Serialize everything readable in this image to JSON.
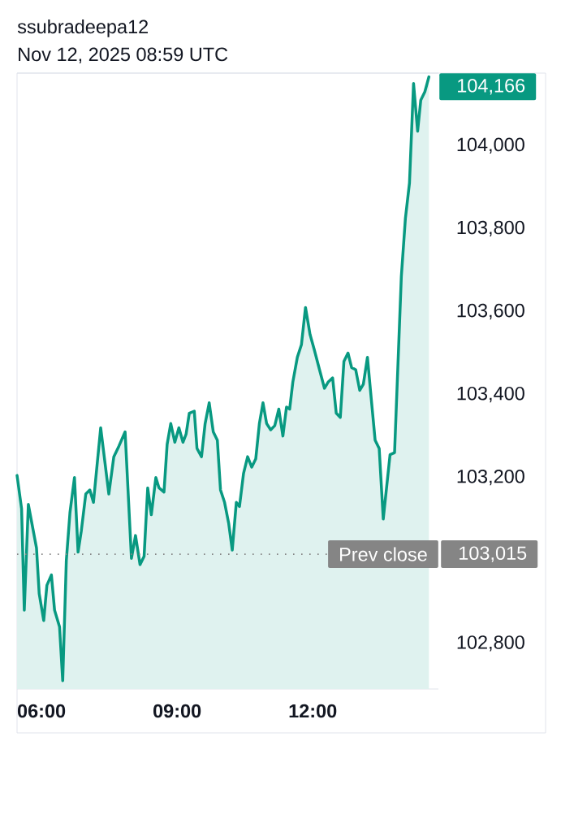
{
  "chart_data": {
    "type": "area",
    "title": "ssubradeepa12",
    "subtitle": "Nov 12, 2025 08:59 UTC",
    "color": "#089981",
    "marker": "none",
    "line_style": "solid",
    "x": [
      5.46,
      5.56,
      5.62,
      5.71,
      5.89,
      5.95,
      6.05,
      6.12,
      6.22,
      6.29,
      6.4,
      6.47,
      6.55,
      6.63,
      6.73,
      6.81,
      6.88,
      6.98,
      7.07,
      7.15,
      7.31,
      7.49,
      7.6,
      7.71,
      7.85,
      7.99,
      8.08,
      8.18,
      8.27,
      8.35,
      8.43,
      8.53,
      8.6,
      8.71,
      8.78,
      8.86,
      8.95,
      9.04,
      9.13,
      9.2,
      9.27,
      9.38,
      9.44,
      9.54,
      9.62,
      9.71,
      9.8,
      9.89,
      9.96,
      10.05,
      10.14,
      10.22,
      10.31,
      10.38,
      10.47,
      10.56,
      10.65,
      10.74,
      10.82,
      10.9,
      10.98,
      11.07,
      11.16,
      11.25,
      11.34,
      11.42,
      11.49,
      11.56,
      11.66,
      11.75,
      11.84,
      11.94,
      12.03,
      12.15,
      12.26,
      12.34,
      12.44,
      12.52,
      12.61,
      12.69,
      12.78,
      12.86,
      12.95,
      13.04,
      13.12,
      13.21,
      13.29,
      13.38,
      13.47,
      13.56,
      13.71,
      13.81,
      13.96,
      14.05,
      14.14,
      14.23,
      14.32,
      14.39,
      14.48,
      14.57
    ],
    "values": [
      103205,
      103125,
      102880,
      103135,
      103030,
      102920,
      102855,
      102940,
      102965,
      102880,
      102840,
      102710,
      103000,
      103115,
      103200,
      103020,
      103070,
      103160,
      103170,
      103140,
      103320,
      103160,
      103250,
      103275,
      103310,
      103005,
      103060,
      102990,
      103010,
      103175,
      103110,
      103200,
      103175,
      103165,
      103280,
      103330,
      103285,
      103320,
      103285,
      103305,
      103355,
      103360,
      103270,
      103250,
      103330,
      103380,
      103310,
      103290,
      103170,
      103140,
      103090,
      103025,
      103140,
      103130,
      103210,
      103250,
      103225,
      103245,
      103330,
      103380,
      103330,
      103315,
      103325,
      103365,
      103300,
      103370,
      103365,
      103430,
      103490,
      103520,
      103610,
      103545,
      103510,
      103460,
      103415,
      103430,
      103440,
      103355,
      103345,
      103480,
      103500,
      103465,
      103460,
      103410,
      103425,
      103490,
      103395,
      103290,
      103270,
      103100,
      103255,
      103260,
      103685,
      103825,
      103910,
      104150,
      104035,
      104110,
      104130,
      104166
    ],
    "value_labels": [
      null,
      null,
      null,
      null,
      null,
      null,
      null,
      null,
      null,
      null,
      null,
      null,
      null,
      null,
      null,
      null,
      null,
      null,
      null,
      null,
      null,
      null,
      null,
      null,
      null,
      null,
      null,
      null,
      null,
      null,
      null,
      null,
      null,
      null,
      null,
      null,
      null,
      null,
      null,
      null,
      null,
      null,
      null,
      null,
      null,
      null,
      null,
      null,
      null,
      null,
      null,
      null,
      null,
      null,
      null,
      null,
      null,
      null,
      null,
      null,
      null,
      null,
      null,
      null,
      null,
      null,
      null,
      null,
      null,
      null,
      null,
      null,
      null,
      null,
      null,
      null,
      null,
      null,
      null,
      null,
      null,
      null,
      null,
      null,
      null,
      null,
      null,
      null,
      null,
      null,
      null,
      null,
      null,
      null,
      null,
      null,
      null,
      null,
      null,
      "104,166"
    ],
    "xlim": [
      5.46,
      14.78
    ],
    "ylim": [
      102690,
      104175
    ],
    "xticks": [
      {
        "value": 6,
        "label": "06:00"
      },
      {
        "value": 9,
        "label": "09:00"
      },
      {
        "value": 12,
        "label": "12:00"
      }
    ],
    "yticks": [
      {
        "value": 102800,
        "label": "102,800"
      },
      {
        "value": 103015,
        "label": "103,015"
      },
      {
        "value": 103200,
        "label": "103,200"
      },
      {
        "value": 103400,
        "label": "103,400"
      },
      {
        "value": 103600,
        "label": "103,600"
      },
      {
        "value": 103800,
        "label": "103,800"
      },
      {
        "value": 104000,
        "label": "104,000"
      }
    ],
    "ref_lines": [
      {
        "axis": "y",
        "value": 103015,
        "label": "Prev close",
        "color": "#858585",
        "line_style": "dotted"
      }
    ]
  }
}
